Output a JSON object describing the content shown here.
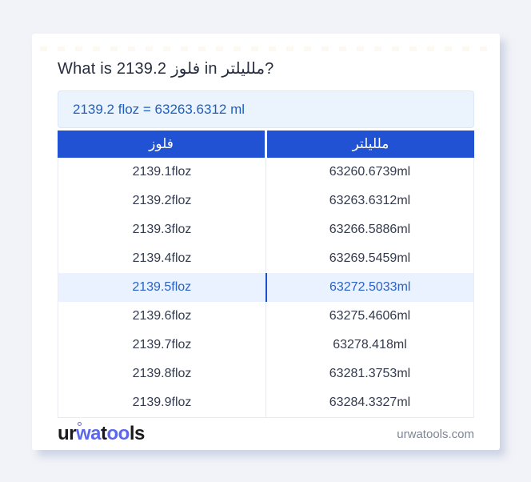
{
  "page": {
    "title": "What is 2139.2 فلوز in ملليلتر?",
    "result": "2139.2 floz = 63263.6312 ml"
  },
  "table": {
    "headers": [
      "فلوز",
      "ملليلتر"
    ],
    "highlighted_row_index": 4,
    "rows": [
      {
        "floz": "2139.1floz",
        "ml": "63260.6739ml"
      },
      {
        "floz": "2139.2floz",
        "ml": "63263.6312ml"
      },
      {
        "floz": "2139.3floz",
        "ml": "63266.5886ml"
      },
      {
        "floz": "2139.4floz",
        "ml": "63269.5459ml"
      },
      {
        "floz": "2139.5floz",
        "ml": "63272.5033ml"
      },
      {
        "floz": "2139.6floz",
        "ml": "63275.4606ml"
      },
      {
        "floz": "2139.7floz",
        "ml": "63278.418ml"
      },
      {
        "floz": "2139.8floz",
        "ml": "63281.3753ml"
      },
      {
        "floz": "2139.9floz",
        "ml": "63284.3327ml"
      }
    ]
  },
  "footer": {
    "logo_parts": {
      "p1": "ur",
      "p2": "wa",
      "p3": "t",
      "p4": "oo",
      "p5": "ls"
    },
    "domain": "urwatools.com"
  },
  "colors": {
    "page_bg": "#f2f3f8",
    "card_bg": "#ffffff",
    "title": "#272e3f",
    "result_bg": "#ebf3fd",
    "result_text": "#1e60c2",
    "header_bg": "#2152d3",
    "header_text": "#ffffff",
    "cell_text": "#333b4d",
    "highlight_bg": "#e9f2fe",
    "highlight_text": "#2a62c6",
    "logo_blue": "#5b68ee",
    "logo_dark": "#1b1b1f",
    "domain_text": "#7d8596"
  }
}
